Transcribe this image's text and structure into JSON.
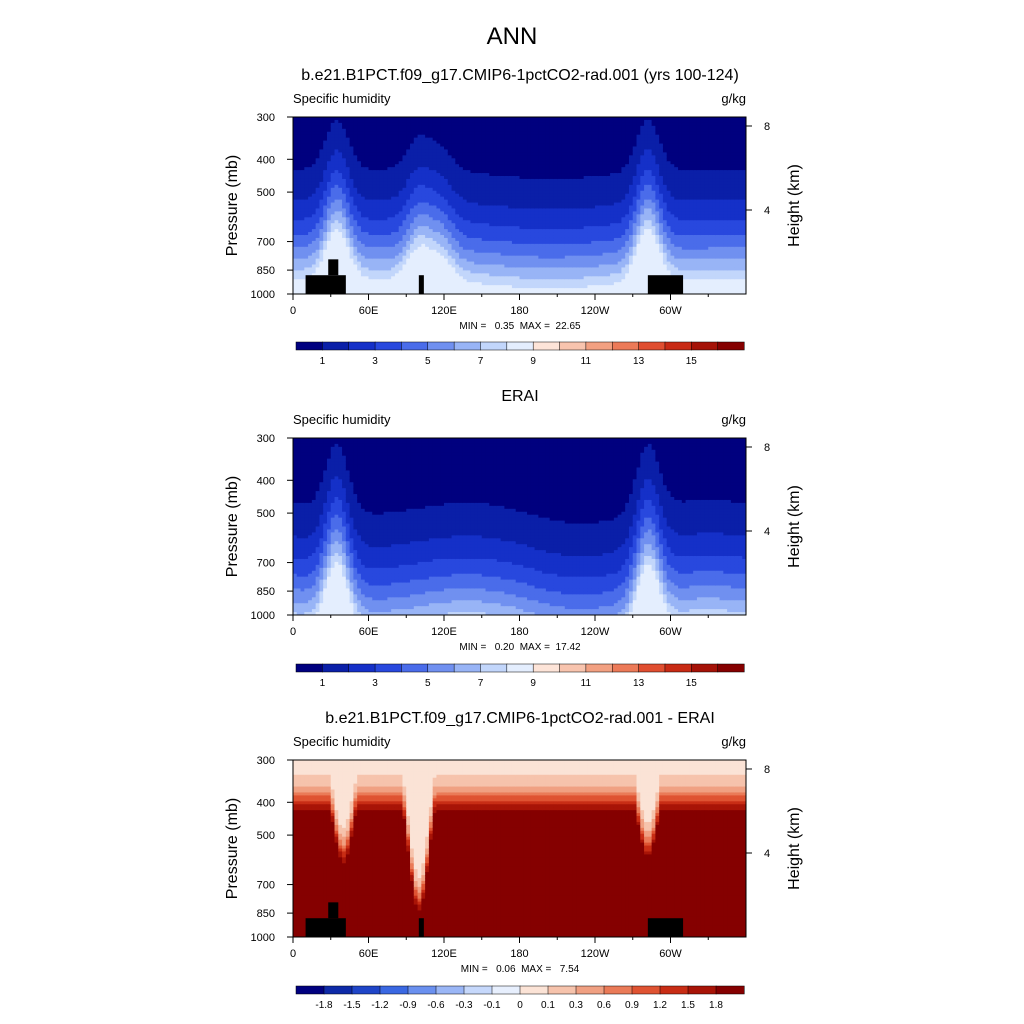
{
  "main_title": "ANN",
  "colors": {
    "abs_scale": [
      "#00007f",
      "#0a1fa8",
      "#1530c8",
      "#2848de",
      "#4a6cea",
      "#7090f0",
      "#98b4f6",
      "#c2d6fb",
      "#e4eefe",
      "#fde4d8",
      "#f8c4ae",
      "#f2a081",
      "#ec7a58",
      "#e04e30",
      "#c82a14",
      "#a51207",
      "#850000"
    ],
    "diff_scale": [
      "#00007f",
      "#0e2aa8",
      "#1f45c8",
      "#3a68e2",
      "#6a90ef",
      "#9ab6f6",
      "#c6d8fb",
      "#e7effd",
      "#fbe3d6",
      "#f6c3ac",
      "#f0a082",
      "#ea7b58",
      "#df5332",
      "#c82d15",
      "#a81407",
      "#850000"
    ],
    "land": "#000000"
  },
  "chart_data": [
    {
      "type": "heatmap",
      "title": "b.e21.B1PCT.f09_g17.CMIP6-1pctCO2-rad.001 (yrs 100-124)",
      "left_string": "Specific humidity",
      "right_string": "g/kg",
      "ylabel": "Pressure (mb)",
      "y2label": "Height (km)",
      "x_ticks": [
        "0",
        "60E",
        "120E",
        "180",
        "120W",
        "60W"
      ],
      "x_tick_values": [
        0,
        60,
        120,
        180,
        240,
        300
      ],
      "xlim": [
        0,
        360
      ],
      "y_ticks": [
        "300",
        "400",
        "500",
        "700",
        "850",
        "1000"
      ],
      "y_tick_values": [
        300,
        400,
        500,
        700,
        850,
        1000
      ],
      "ylim": [
        300,
        1000
      ],
      "y2_ticks": [
        "8",
        "4"
      ],
      "y2_tick_values": [
        8,
        4
      ],
      "stats": "MIN =   0.35  MAX =  22.65",
      "colorbar": {
        "labels": [
          "1",
          "3",
          "5",
          "7",
          "9",
          "11",
          "13",
          "15"
        ],
        "levels": [
          1,
          3,
          5,
          7,
          9,
          11,
          13,
          15
        ],
        "min_level": 0,
        "step": 1
      },
      "field": {
        "kind": "abs",
        "surface_q": 18.5,
        "ridges": [
          [
            35,
            0.8
          ],
          [
            100,
            0.5
          ],
          [
            118,
            0.35
          ],
          [
            282,
            0.85
          ]
        ],
        "troughs": [
          [
            205,
            0.15
          ]
        ]
      },
      "land_blocks": [
        [
          10,
          42,
          880,
          1000
        ],
        [
          28,
          36,
          790,
          880
        ],
        [
          100,
          104,
          880,
          1000
        ],
        [
          282,
          310,
          880,
          1000
        ]
      ]
    },
    {
      "type": "heatmap",
      "title": "ERAI",
      "left_string": "Specific humidity",
      "right_string": "g/kg",
      "ylabel": "Pressure (mb)",
      "y2label": "Height (km)",
      "x_ticks": [
        "0",
        "60E",
        "120E",
        "180",
        "120W",
        "60W"
      ],
      "x_tick_values": [
        0,
        60,
        120,
        180,
        240,
        300
      ],
      "xlim": [
        0,
        360
      ],
      "y_ticks": [
        "300",
        "400",
        "500",
        "700",
        "850",
        "1000"
      ],
      "y_tick_values": [
        300,
        400,
        500,
        700,
        850,
        1000
      ],
      "ylim": [
        300,
        1000
      ],
      "y2_ticks": [
        "8",
        "4"
      ],
      "y2_tick_values": [
        8,
        4
      ],
      "stats": "MIN =   0.20  MAX =  17.42",
      "colorbar": {
        "labels": [
          "1",
          "3",
          "5",
          "7",
          "9",
          "11",
          "13",
          "15"
        ],
        "levels": [
          1,
          3,
          5,
          7,
          9,
          11,
          13,
          15
        ],
        "min_level": 0,
        "step": 1
      },
      "field": {
        "kind": "abs",
        "surface_q": 15.0,
        "ridges": [
          [
            35,
            1.1
          ],
          [
            282,
            1.05
          ]
        ],
        "troughs": [
          [
            60,
            0.3
          ],
          [
            230,
            0.45
          ]
        ]
      },
      "land_blocks": []
    },
    {
      "type": "heatmap",
      "title": "b.e21.B1PCT.f09_g17.CMIP6-1pctCO2-rad.001 - ERAI",
      "left_string": "Specific humidity",
      "right_string": "g/kg",
      "ylabel": "Pressure (mb)",
      "y2label": "Height (km)",
      "x_ticks": [
        "0",
        "60E",
        "120E",
        "180",
        "120W",
        "60W"
      ],
      "x_tick_values": [
        0,
        60,
        120,
        180,
        240,
        300
      ],
      "xlim": [
        0,
        360
      ],
      "y_ticks": [
        "300",
        "400",
        "500",
        "700",
        "850",
        "1000"
      ],
      "y_tick_values": [
        300,
        400,
        500,
        700,
        850,
        1000
      ],
      "ylim": [
        300,
        1000
      ],
      "y2_ticks": [
        "8",
        "4"
      ],
      "y2_tick_values": [
        8,
        4
      ],
      "stats": "MIN =   0.06  MAX =   7.54",
      "colorbar": {
        "labels": [
          "-1.8",
          "-1.5",
          "-1.2",
          "-0.9",
          "-0.6",
          "-0.3",
          "-0.1",
          "0",
          "0.1",
          "0.3",
          "0.6",
          "0.9",
          "1.2",
          "1.5",
          "1.8"
        ],
        "levels": [
          -1.8,
          -1.5,
          -1.2,
          -0.9,
          -0.6,
          -0.3,
          -0.1,
          0,
          0.1,
          0.3,
          0.6,
          0.9,
          1.2,
          1.5,
          1.8
        ]
      },
      "field": {
        "kind": "diff",
        "dips": [
          [
            100,
            780
          ],
          [
            282,
            540
          ],
          [
            40,
            560
          ]
        ]
      },
      "land_blocks": [
        [
          10,
          42,
          880,
          1000
        ],
        [
          28,
          36,
          790,
          880
        ],
        [
          100,
          104,
          880,
          1000
        ],
        [
          282,
          310,
          880,
          1000
        ]
      ]
    }
  ]
}
